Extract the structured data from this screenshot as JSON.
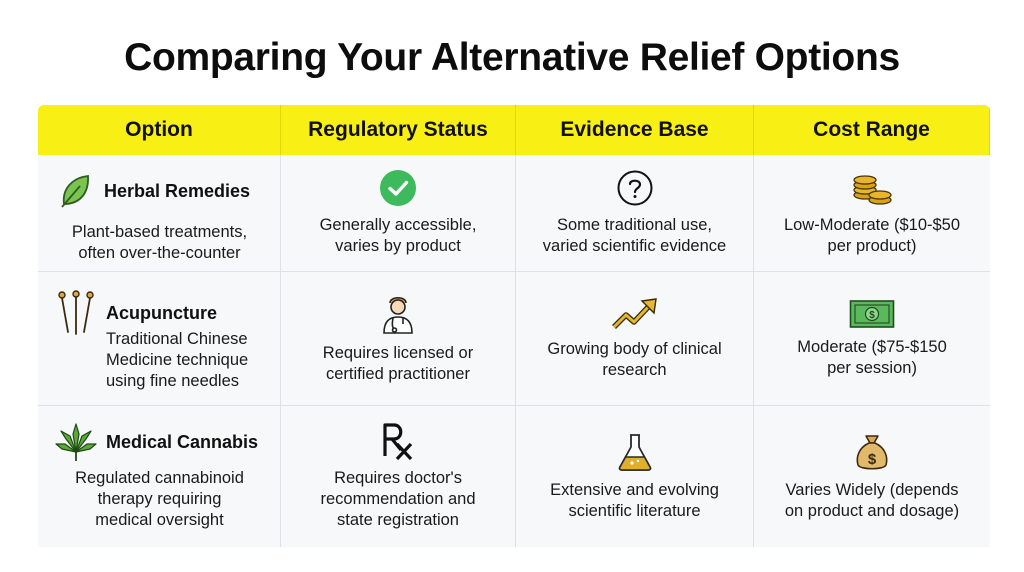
{
  "title": "Comparing Your Alternative Relief Options",
  "columns": [
    "Option",
    "Regulatory Status",
    "Evidence Base",
    "Cost Range"
  ],
  "rows": [
    {
      "option": {
        "name": "Herbal Remedies",
        "icon": "leaf-icon",
        "description_lines": [
          "Plant-based treatments,",
          "often over-the-counter"
        ]
      },
      "regulatory": {
        "icon": "check-circle-icon",
        "lines": [
          "Generally accessible,",
          "varies by product"
        ]
      },
      "evidence": {
        "icon": "question-circle-icon",
        "lines": [
          "Some traditional use,",
          "varied scientific evidence"
        ]
      },
      "cost": {
        "icon": "coins-icon",
        "lines": [
          "Low-Moderate ($10-$50",
          "per product)"
        ]
      }
    },
    {
      "option": {
        "name": "Acupuncture",
        "icon": "needles-icon",
        "description_lines": [
          "Traditional Chinese",
          "Medicine technique",
          "using fine needles"
        ]
      },
      "regulatory": {
        "icon": "doctor-icon",
        "lines": [
          "Requires licensed or",
          "certified practitioner"
        ]
      },
      "evidence": {
        "icon": "trend-up-icon",
        "lines": [
          "Growing body of clinical",
          "research"
        ]
      },
      "cost": {
        "icon": "banknote-icon",
        "lines": [
          "Moderate ($75-$150",
          "per session)"
        ]
      }
    },
    {
      "option": {
        "name": "Medical Cannabis",
        "icon": "cannabis-leaf-icon",
        "description_lines": [
          "Regulated cannabinoid",
          "therapy requiring",
          "medical oversight"
        ]
      },
      "regulatory": {
        "icon": "rx-icon",
        "lines": [
          "Requires doctor's",
          "recommendation and",
          "state registration"
        ]
      },
      "evidence": {
        "icon": "flask-icon",
        "lines": [
          "Extensive and evolving",
          "scientific literature"
        ]
      },
      "cost": {
        "icon": "money-bag-icon",
        "lines": [
          "Varies Widely (depends",
          "on product and dosage)"
        ]
      }
    }
  ],
  "colors": {
    "header": "#f8ef14",
    "check": "#3dbb5c",
    "leaf": "#6fbf4a",
    "coin": "#d9a21b",
    "cash": "#4caf50",
    "flask": "#e0b02a"
  }
}
